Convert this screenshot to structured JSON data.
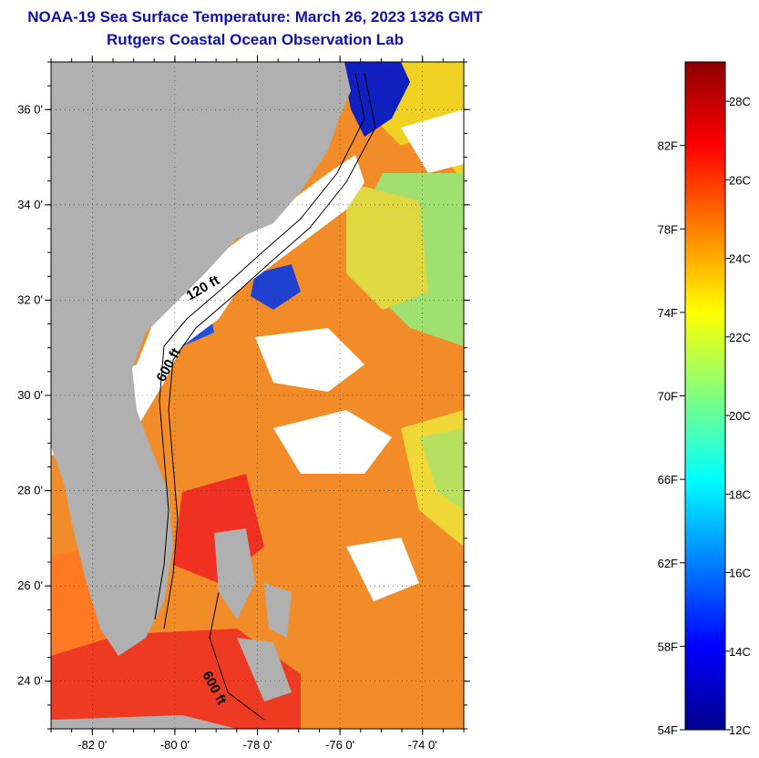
{
  "header": {
    "title": "NOAA-19 Sea Surface Temperature:  March 26, 2023 1326 GMT",
    "subtitle": "Rutgers Coastal Ocean Observation Lab"
  },
  "map": {
    "lon_range": [
      -83,
      -73
    ],
    "lat_range": [
      23,
      37
    ],
    "lat_ticks": [
      {
        "value": 24,
        "label": "24 0'"
      },
      {
        "value": 26,
        "label": "26 0'"
      },
      {
        "value": 28,
        "label": "28 0'"
      },
      {
        "value": 30,
        "label": "30 0'"
      },
      {
        "value": 32,
        "label": "32 0'"
      },
      {
        "value": 34,
        "label": "34 0'"
      },
      {
        "value": 36,
        "label": "36 0'"
      }
    ],
    "lon_ticks": [
      {
        "value": -82,
        "label": "-82 0'"
      },
      {
        "value": -80,
        "label": "-80 0'"
      },
      {
        "value": -78,
        "label": "-78 0'"
      },
      {
        "value": -76,
        "label": "-76 0'"
      },
      {
        "value": -74,
        "label": "-74 0'"
      }
    ],
    "contour_labels": [
      "120 ft",
      "600 ft",
      "600 ft"
    ],
    "land_color": "#b0b0b0",
    "cloud_color": "#ffffff",
    "grid": "dotted"
  },
  "colorbar": {
    "range_f": [
      54,
      86
    ],
    "range_c": [
      12,
      29
    ],
    "fahrenheit_ticks": [
      {
        "value": 54,
        "label": "54F"
      },
      {
        "value": 58,
        "label": "58F"
      },
      {
        "value": 62,
        "label": "62F"
      },
      {
        "value": 66,
        "label": "66F"
      },
      {
        "value": 70,
        "label": "70F"
      },
      {
        "value": 74,
        "label": "74F"
      },
      {
        "value": 78,
        "label": "78F"
      },
      {
        "value": 82,
        "label": "82F"
      }
    ],
    "celsius_ticks": [
      {
        "value": 12,
        "label": "12C"
      },
      {
        "value": 14,
        "label": "14C"
      },
      {
        "value": 16,
        "label": "16C"
      },
      {
        "value": 18,
        "label": "18C"
      },
      {
        "value": 20,
        "label": "20C"
      },
      {
        "value": 22,
        "label": "22C"
      },
      {
        "value": 24,
        "label": "24C"
      },
      {
        "value": 26,
        "label": "26C"
      },
      {
        "value": 28,
        "label": "28C"
      }
    ],
    "colors": [
      "#00008b",
      "#0000ff",
      "#0080ff",
      "#00ffff",
      "#80ff80",
      "#ffff00",
      "#ff8000",
      "#ff0000",
      "#8b0000"
    ]
  }
}
